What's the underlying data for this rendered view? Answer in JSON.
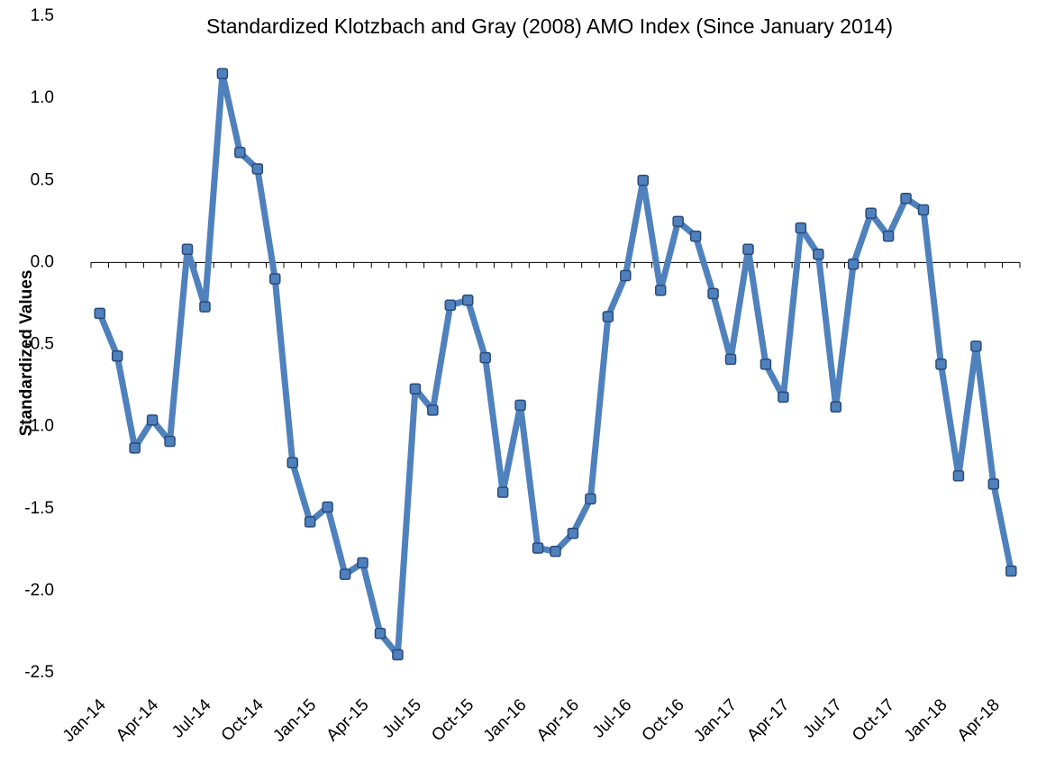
{
  "chart_data": {
    "type": "line",
    "title": "Standardized Klotzbach and Gray (2008)  AMO Index (Since January 2014)",
    "y_label": "Standardized  Values",
    "categories": [
      "Jan-14",
      null,
      null,
      "Apr-14",
      null,
      null,
      "Jul-14",
      null,
      null,
      "Oct-14",
      null,
      null,
      "Jan-15",
      null,
      null,
      "Apr-15",
      null,
      null,
      "Jul-15",
      null,
      null,
      "Oct-15",
      null,
      null,
      "Jan-16",
      null,
      null,
      "Apr-16",
      null,
      null,
      "Jul-16",
      null,
      null,
      "Oct-16",
      null,
      null,
      "Jan-17",
      null,
      null,
      "Apr-17",
      null,
      null,
      "Jul-17",
      null,
      null,
      "Oct-17",
      null,
      null,
      "Jan-18",
      null,
      null,
      "Apr-18",
      null
    ],
    "series": [
      {
        "name": "AMO Index",
        "color": "#4f81bd",
        "values": [
          -0.31,
          -0.57,
          -1.13,
          -0.96,
          -1.09,
          0.08,
          -0.27,
          1.15,
          0.67,
          0.57,
          -0.1,
          -1.22,
          -1.58,
          -1.49,
          -1.9,
          -1.83,
          -2.26,
          -2.39,
          -0.77,
          -0.9,
          -0.26,
          -0.23,
          -0.58,
          -1.4,
          -0.87,
          -1.74,
          -1.76,
          -1.65,
          -1.44,
          -0.33,
          -0.08,
          0.5,
          -0.17,
          0.25,
          0.16,
          -0.19,
          -0.59,
          0.08,
          -0.62,
          -0.82,
          0.21,
          0.05,
          -0.88,
          -0.01,
          0.3,
          0.16,
          0.39,
          0.32,
          -0.62,
          -1.3,
          -0.51,
          -1.35,
          -1.88
        ]
      }
    ],
    "ylim": [
      -2.5,
      1.5
    ],
    "yticks": [
      -2.5,
      {
        "value": -2,
        "label": "-2.0"
      },
      -1.5,
      {
        "value": -1,
        "label": "-1.0"
      },
      -0.5,
      {
        "value": 0,
        "label": "0.0"
      },
      0.5,
      {
        "value": 1,
        "label": "1.0"
      },
      1.5
    ],
    "grid": false
  }
}
